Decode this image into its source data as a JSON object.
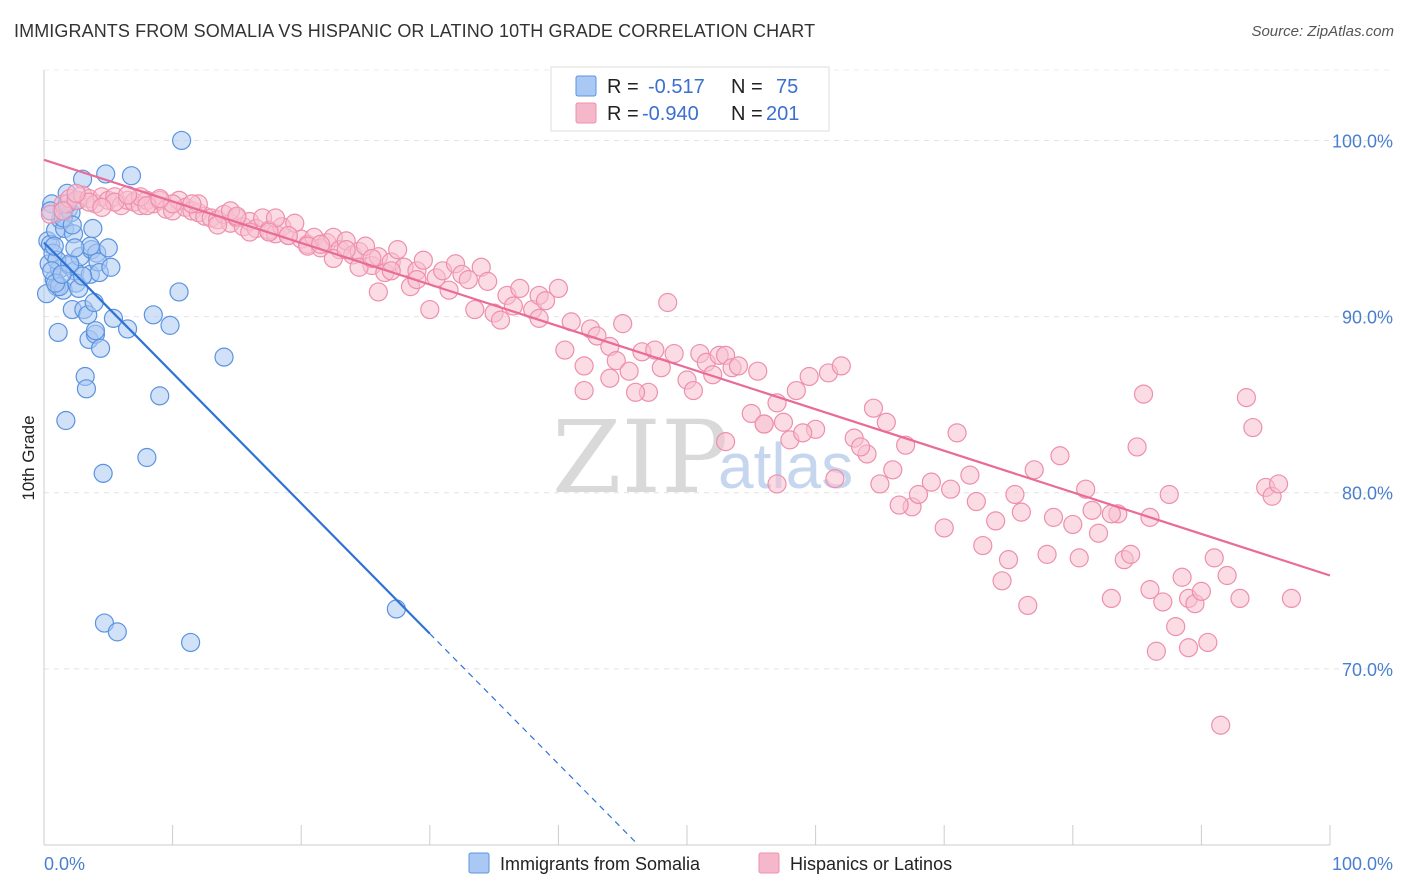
{
  "header": {
    "title": "IMMIGRANTS FROM SOMALIA VS HISPANIC OR LATINO 10TH GRADE CORRELATION CHART",
    "source": "Source: ZipAtlas.com"
  },
  "watermark": {
    "zip": "ZIP",
    "atlas": "atlas"
  },
  "legend_box": {
    "rows": [
      {
        "r_label": "R =",
        "r_value": "-0.517",
        "n_label": "N =",
        "n_value": "75",
        "color": "#a9c8f3"
      },
      {
        "r_label": "R =",
        "r_value": "-0.940",
        "n_label": "N =",
        "n_value": "201",
        "color": "#f5b8cb"
      }
    ]
  },
  "chart_data": {
    "type": "scatter",
    "title": "IMMIGRANTS FROM SOMALIA VS HISPANIC OR LATINO 10TH GRADE CORRELATION CHART",
    "xlabel": "",
    "ylabel": "10th Grade",
    "xlim": [
      0,
      100
    ],
    "ylim": [
      60,
      104
    ],
    "x_tick_labels": [
      "0.0%",
      "100.0%"
    ],
    "y_ticks": [
      70,
      80,
      90,
      100
    ],
    "y_tick_labels": [
      "70.0%",
      "80.0%",
      "90.0%",
      "100.0%"
    ],
    "grid": true,
    "legend_position": "bottom",
    "colors": {
      "somalia_fill": "#a9c8f3",
      "somalia_stroke": "#5b93e0",
      "somalia_line": "#2f72d6",
      "hispanic_fill": "#f7bfd0",
      "hispanic_stroke": "#ee8fad",
      "hispanic_line": "#e96b97"
    },
    "series": [
      {
        "name": "Immigrants from Somalia",
        "trend": {
          "x1": 0,
          "y1": 94.2,
          "x2": 30,
          "y2": 72.0,
          "dash_to_x": 46
        },
        "points": [
          [
            0.3,
            94.3
          ],
          [
            0.4,
            93.0
          ],
          [
            0.5,
            94.1
          ],
          [
            0.6,
            96.4
          ],
          [
            0.7,
            93.6
          ],
          [
            0.8,
            92.1
          ],
          [
            0.9,
            94.9
          ],
          [
            1.0,
            91.7
          ],
          [
            1.1,
            89.1
          ],
          [
            1.2,
            92.7
          ],
          [
            1.3,
            95.5
          ],
          [
            1.4,
            96.0
          ],
          [
            1.5,
            91.5
          ],
          [
            1.6,
            95.0
          ],
          [
            1.7,
            84.1
          ],
          [
            1.8,
            97.0
          ],
          [
            1.9,
            96.1
          ],
          [
            2.0,
            92.9
          ],
          [
            2.1,
            95.9
          ],
          [
            2.2,
            90.4
          ],
          [
            2.3,
            94.7
          ],
          [
            2.4,
            92.6
          ],
          [
            2.5,
            91.9
          ],
          [
            2.6,
            96.6
          ],
          [
            2.8,
            93.4
          ],
          [
            3.0,
            97.8
          ],
          [
            3.1,
            90.4
          ],
          [
            3.2,
            86.6
          ],
          [
            3.3,
            85.9
          ],
          [
            3.4,
            90.1
          ],
          [
            3.5,
            88.7
          ],
          [
            3.6,
            92.4
          ],
          [
            3.7,
            93.8
          ],
          [
            3.8,
            95.0
          ],
          [
            3.9,
            90.8
          ],
          [
            4.0,
            89.0
          ],
          [
            4.1,
            93.6
          ],
          [
            4.2,
            93.1
          ],
          [
            4.3,
            92.5
          ],
          [
            4.4,
            88.2
          ],
          [
            4.6,
            81.1
          ],
          [
            4.7,
            72.6
          ],
          [
            4.8,
            98.1
          ],
          [
            5.0,
            93.9
          ],
          [
            5.2,
            92.8
          ],
          [
            5.4,
            89.9
          ],
          [
            5.7,
            72.1
          ],
          [
            6.5,
            89.3
          ],
          [
            6.8,
            98.0
          ],
          [
            8.0,
            82.0
          ],
          [
            8.5,
            90.1
          ],
          [
            9.0,
            85.5
          ],
          [
            9.8,
            89.5
          ],
          [
            10.5,
            91.4
          ],
          [
            10.7,
            100.0
          ],
          [
            11.4,
            71.5
          ],
          [
            14.0,
            87.7
          ],
          [
            27.4,
            73.4
          ],
          [
            0.5,
            96.0
          ],
          [
            1.0,
            93.2
          ],
          [
            1.5,
            95.6
          ],
          [
            2.0,
            93.0
          ],
          [
            2.7,
            91.6
          ],
          [
            3.0,
            92.3
          ],
          [
            0.8,
            94.0
          ],
          [
            0.2,
            91.3
          ],
          [
            1.2,
            91.7
          ],
          [
            4.0,
            89.2
          ],
          [
            2.2,
            95.2
          ],
          [
            0.6,
            92.6
          ],
          [
            1.8,
            96.4
          ],
          [
            3.6,
            94.0
          ],
          [
            0.9,
            91.9
          ],
          [
            2.4,
            93.9
          ],
          [
            1.4,
            92.4
          ]
        ]
      },
      {
        "name": "Hispanics or Latinos",
        "trend": {
          "x1": 0,
          "y1": 98.9,
          "x2": 100,
          "y2": 75.3
        },
        "points": [
          [
            0.5,
            95.8
          ],
          [
            1.5,
            96.4
          ],
          [
            2.0,
            96.7
          ],
          [
            2.5,
            96.6
          ],
          [
            3.0,
            96.9
          ],
          [
            3.5,
            96.7
          ],
          [
            4.0,
            96.4
          ],
          [
            4.5,
            96.8
          ],
          [
            5.0,
            96.6
          ],
          [
            5.5,
            96.8
          ],
          [
            6.0,
            96.3
          ],
          [
            6.5,
            96.6
          ],
          [
            7.0,
            96.5
          ],
          [
            7.5,
            96.3
          ],
          [
            8.0,
            96.6
          ],
          [
            8.5,
            96.4
          ],
          [
            9.0,
            96.6
          ],
          [
            9.5,
            96.1
          ],
          [
            10.0,
            96.0
          ],
          [
            10.5,
            96.6
          ],
          [
            11.0,
            96.2
          ],
          [
            11.5,
            96.0
          ],
          [
            12.0,
            95.9
          ],
          [
            12.5,
            95.7
          ],
          [
            13.0,
            95.6
          ],
          [
            13.5,
            95.5
          ],
          [
            14.0,
            95.8
          ],
          [
            14.5,
            95.3
          ],
          [
            15.0,
            95.6
          ],
          [
            15.5,
            95.1
          ],
          [
            16.0,
            95.4
          ],
          [
            16.5,
            95.0
          ],
          [
            17.0,
            95.6
          ],
          [
            17.5,
            94.9
          ],
          [
            18.0,
            94.7
          ],
          [
            18.5,
            95.1
          ],
          [
            19.0,
            94.6
          ],
          [
            19.5,
            95.3
          ],
          [
            20.0,
            94.4
          ],
          [
            20.5,
            94.1
          ],
          [
            21.0,
            94.5
          ],
          [
            21.5,
            93.9
          ],
          [
            22.0,
            94.2
          ],
          [
            22.5,
            94.5
          ],
          [
            23.0,
            93.8
          ],
          [
            23.5,
            94.3
          ],
          [
            24.0,
            93.5
          ],
          [
            24.5,
            93.7
          ],
          [
            25.0,
            94.0
          ],
          [
            25.5,
            92.9
          ],
          [
            26.0,
            93.4
          ],
          [
            26.5,
            92.5
          ],
          [
            27.0,
            93.1
          ],
          [
            27.5,
            93.8
          ],
          [
            28.0,
            92.8
          ],
          [
            29.0,
            92.6
          ],
          [
            29.5,
            93.2
          ],
          [
            30.0,
            90.4
          ],
          [
            30.5,
            92.2
          ],
          [
            31.0,
            92.6
          ],
          [
            31.5,
            91.5
          ],
          [
            32.0,
            93.0
          ],
          [
            32.5,
            92.4
          ],
          [
            33.0,
            92.1
          ],
          [
            34.0,
            92.8
          ],
          [
            34.5,
            92.0
          ],
          [
            35.0,
            90.2
          ],
          [
            36.0,
            91.2
          ],
          [
            36.5,
            90.6
          ],
          [
            37.0,
            91.6
          ],
          [
            38.0,
            90.4
          ],
          [
            38.5,
            91.2
          ],
          [
            39.0,
            90.9
          ],
          [
            40.0,
            91.6
          ],
          [
            40.5,
            88.1
          ],
          [
            41.0,
            89.7
          ],
          [
            42.0,
            87.2
          ],
          [
            42.5,
            89.3
          ],
          [
            43.0,
            88.9
          ],
          [
            44.0,
            88.3
          ],
          [
            44.5,
            87.5
          ],
          [
            45.0,
            89.6
          ],
          [
            45.5,
            86.9
          ],
          [
            46.5,
            88.0
          ],
          [
            47.0,
            85.7
          ],
          [
            47.5,
            88.1
          ],
          [
            48.0,
            87.1
          ],
          [
            48.5,
            90.8
          ],
          [
            49.0,
            87.9
          ],
          [
            50.0,
            86.4
          ],
          [
            50.5,
            85.8
          ],
          [
            51.0,
            87.9
          ],
          [
            51.5,
            87.4
          ],
          [
            52.0,
            86.7
          ],
          [
            52.5,
            87.8
          ],
          [
            53.0,
            87.8
          ],
          [
            53.5,
            87.1
          ],
          [
            54.0,
            87.2
          ],
          [
            55.0,
            84.5
          ],
          [
            55.5,
            86.9
          ],
          [
            56.0,
            83.9
          ],
          [
            57.0,
            85.1
          ],
          [
            57.5,
            84.0
          ],
          [
            58.0,
            83.0
          ],
          [
            58.5,
            85.8
          ],
          [
            59.5,
            86.6
          ],
          [
            60.0,
            83.6
          ],
          [
            61.0,
            86.8
          ],
          [
            61.5,
            80.8
          ],
          [
            62.0,
            87.2
          ],
          [
            63.0,
            83.1
          ],
          [
            64.0,
            82.2
          ],
          [
            64.5,
            84.8
          ],
          [
            65.0,
            80.5
          ],
          [
            65.5,
            84.0
          ],
          [
            66.0,
            81.3
          ],
          [
            67.0,
            82.7
          ],
          [
            67.5,
            79.2
          ],
          [
            68.0,
            79.9
          ],
          [
            69.0,
            80.6
          ],
          [
            70.0,
            78.0
          ],
          [
            70.5,
            80.2
          ],
          [
            71.0,
            83.4
          ],
          [
            72.0,
            81.0
          ],
          [
            72.5,
            79.5
          ],
          [
            73.0,
            77.0
          ],
          [
            74.0,
            78.4
          ],
          [
            74.5,
            75.0
          ],
          [
            75.0,
            76.2
          ],
          [
            76.0,
            78.9
          ],
          [
            76.5,
            73.6
          ],
          [
            77.0,
            81.3
          ],
          [
            78.0,
            76.5
          ],
          [
            78.5,
            78.6
          ],
          [
            79.0,
            82.1
          ],
          [
            80.0,
            78.2
          ],
          [
            80.5,
            76.3
          ],
          [
            81.0,
            80.2
          ],
          [
            81.5,
            79.0
          ],
          [
            82.0,
            77.7
          ],
          [
            83.0,
            74.0
          ],
          [
            83.5,
            78.8
          ],
          [
            84.0,
            76.2
          ],
          [
            84.5,
            76.5
          ],
          [
            85.0,
            82.6
          ],
          [
            85.5,
            85.6
          ],
          [
            86.0,
            74.5
          ],
          [
            86.5,
            71.0
          ],
          [
            87.0,
            73.8
          ],
          [
            88.0,
            72.4
          ],
          [
            88.5,
            75.2
          ],
          [
            89.0,
            74.0
          ],
          [
            89.5,
            73.7
          ],
          [
            90.0,
            74.4
          ],
          [
            90.5,
            71.5
          ],
          [
            91.0,
            76.3
          ],
          [
            92.0,
            75.3
          ],
          [
            93.0,
            74.0
          ],
          [
            93.5,
            85.4
          ],
          [
            94.0,
            83.7
          ],
          [
            95.0,
            80.3
          ],
          [
            95.5,
            79.8
          ],
          [
            96.0,
            80.5
          ],
          [
            97.0,
            74.0
          ],
          [
            91.5,
            66.8
          ],
          [
            86.0,
            78.6
          ],
          [
            83.0,
            78.8
          ],
          [
            75.5,
            79.9
          ],
          [
            87.5,
            79.9
          ],
          [
            89.0,
            71.2
          ],
          [
            66.5,
            79.3
          ],
          [
            63.5,
            82.6
          ],
          [
            59.0,
            83.4
          ],
          [
            57.0,
            80.5
          ],
          [
            56.0,
            83.9
          ],
          [
            53.0,
            82.9
          ],
          [
            46.0,
            85.7
          ],
          [
            44.0,
            86.5
          ],
          [
            42.0,
            85.8
          ],
          [
            38.5,
            89.9
          ],
          [
            35.5,
            89.8
          ],
          [
            33.5,
            90.4
          ],
          [
            28.5,
            91.7
          ],
          [
            26.0,
            91.4
          ],
          [
            24.5,
            92.8
          ],
          [
            22.5,
            93.3
          ],
          [
            20.5,
            94.0
          ],
          [
            18.0,
            95.6
          ],
          [
            16.0,
            94.8
          ],
          [
            14.5,
            96.0
          ],
          [
            12.0,
            96.4
          ],
          [
            10.0,
            96.4
          ],
          [
            7.5,
            96.8
          ],
          [
            5.5,
            96.5
          ],
          [
            3.5,
            96.5
          ],
          [
            1.5,
            96.0
          ],
          [
            2.5,
            97.0
          ],
          [
            4.5,
            96.2
          ],
          [
            6.5,
            96.9
          ],
          [
            8.0,
            96.3
          ],
          [
            9.0,
            96.7
          ],
          [
            11.5,
            96.4
          ],
          [
            13.5,
            95.2
          ],
          [
            15.0,
            95.7
          ],
          [
            17.5,
            94.8
          ],
          [
            19.0,
            94.6
          ],
          [
            21.5,
            94.1
          ],
          [
            23.5,
            93.8
          ],
          [
            25.5,
            93.3
          ],
          [
            27.0,
            92.6
          ],
          [
            29.0,
            92.1
          ]
        ]
      }
    ]
  },
  "bottom_legend": [
    {
      "label": "Immigrants from Somalia",
      "color": "#a9c8f3"
    },
    {
      "label": "Hispanics or Latinos",
      "color": "#f5b8cb"
    }
  ]
}
